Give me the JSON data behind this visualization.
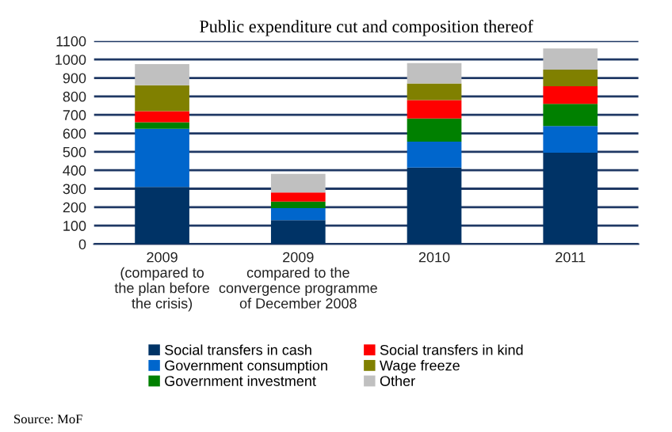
{
  "chart_data": {
    "type": "bar",
    "stacked": true,
    "title": "Public expenditure cut and composition thereof",
    "categories": [
      "2009\n(compared to\nthe plan before\nthe crisis)",
      "2009\ncompared to the\nconvergence programme\nof December 2008",
      "2010",
      "2011"
    ],
    "series": [
      {
        "name": "Social transfers in cash",
        "color": "#003366",
        "values": [
          310,
          130,
          415,
          495
        ]
      },
      {
        "name": "Government consumption",
        "color": "#0066cc",
        "values": [
          315,
          65,
          140,
          145
        ]
      },
      {
        "name": "Government investment",
        "color": "#008000",
        "values": [
          35,
          35,
          125,
          120
        ]
      },
      {
        "name": "Social transfers in kind",
        "color": "#ff0000",
        "values": [
          60,
          50,
          100,
          95
        ]
      },
      {
        "name": "Wage freeze",
        "color": "#808000",
        "values": [
          140,
          0,
          90,
          90
        ]
      },
      {
        "name": "Other",
        "color": "#c0c0c0",
        "values": [
          115,
          100,
          110,
          115
        ]
      }
    ],
    "ylim": [
      0,
      1100
    ],
    "yticks": [
      0,
      100,
      200,
      300,
      400,
      500,
      600,
      700,
      800,
      900,
      1000,
      1100
    ],
    "grid": "y",
    "legend": "bottom",
    "annotations": [
      "Source: MoF"
    ]
  }
}
